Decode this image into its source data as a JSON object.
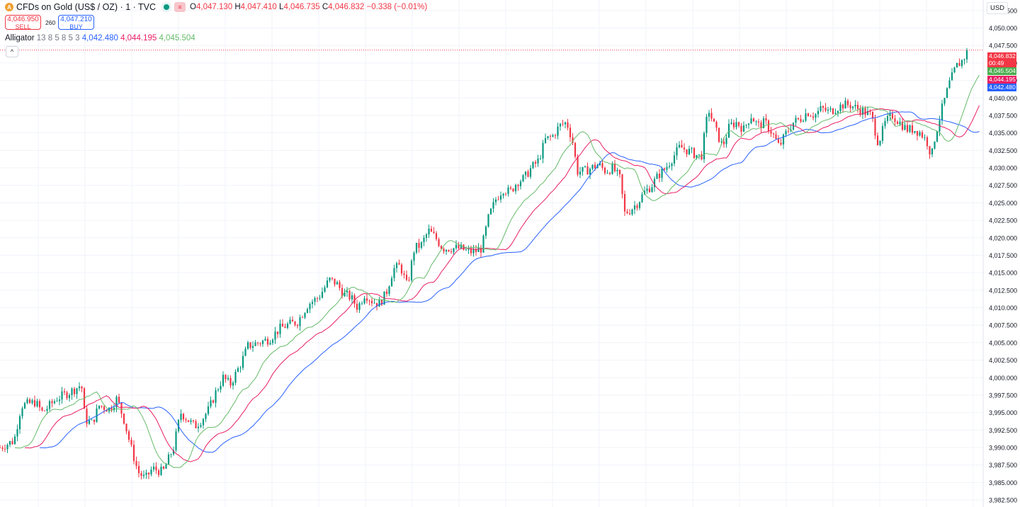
{
  "header": {
    "symbol_icon": "gold-coin-icon",
    "title": "CFDs on Gold (US$ / OZ) · 1 · TVC",
    "ohlc": {
      "o_label": "O",
      "o": "4,047.130",
      "h_label": "H",
      "h": "4,047.410",
      "l_label": "L",
      "l": "4,046.735",
      "c_label": "C",
      "c": "4,046.832",
      "change": "−0.338 (−0.01%)"
    }
  },
  "trade": {
    "sell_price": "4,046.950",
    "sell_label": "SELL",
    "spread": "260",
    "buy_price": "4,047.210",
    "buy_label": "BUY"
  },
  "indicator": {
    "name": "Alligator",
    "params": "13 8 5 8 5 3",
    "jaw": "4,042.480",
    "teeth": "4,044.195",
    "lips": "4,045.504"
  },
  "currency": "USD",
  "price_tags": [
    {
      "value": "4,046.832",
      "color": "#f23645"
    },
    {
      "value": "00:49",
      "color": "#f23645"
    },
    {
      "value": "4,045.504",
      "color": "#4caf50"
    },
    {
      "value": "4,044.195",
      "color": "#e91e63"
    },
    {
      "value": "4,042.480",
      "color": "#2962ff"
    }
  ],
  "colors": {
    "up": "#089981",
    "down": "#f23645",
    "jaw": "#2962ff",
    "teeth": "#e91e63",
    "lips": "#66bb6a",
    "grid": "#f0f3fa"
  },
  "chart_data": {
    "type": "line",
    "ylim": [
      3981.5,
      4054.0
    ],
    "yticks": [
      "4,052.500",
      "4,050.000",
      "4,047.500",
      "4,045.000",
      "4,042.500",
      "4,040.000",
      "4,037.500",
      "4,035.000",
      "4,032.500",
      "4,030.000",
      "4,027.500",
      "4,025.000",
      "4,022.500",
      "4,020.000",
      "4,017.500",
      "4,015.000",
      "4,012.500",
      "4,010.000",
      "4,007.500",
      "4,005.000",
      "4,002.500",
      "4,000.000",
      "3,997.500",
      "3,995.000",
      "3,992.500",
      "3,990.000",
      "3,987.500",
      "3,985.000",
      "3,982.500"
    ],
    "ytick_values": [
      4052.5,
      4050,
      4047.5,
      4045,
      4042.5,
      4040,
      4037.5,
      4035,
      4032.5,
      4030,
      4027.5,
      4025,
      4022.5,
      4020,
      4017.5,
      4015,
      4012.5,
      4010,
      4007.5,
      4005,
      4002.5,
      4000,
      3997.5,
      3995,
      3992.5,
      3990,
      3987.5,
      3985,
      3982.5
    ],
    "last_price": 4046.832,
    "price_path": [
      [
        0,
        3990.0
      ],
      [
        20,
        3991.0
      ],
      [
        30,
        3996.0
      ],
      [
        50,
        3996.5
      ],
      [
        60,
        3995.0
      ],
      [
        80,
        3997.0
      ],
      [
        100,
        3998.0
      ],
      [
        115,
        3999.0
      ],
      [
        120,
        3994.0
      ],
      [
        130,
        3993.5
      ],
      [
        140,
        3996.0
      ],
      [
        155,
        3995.5
      ],
      [
        165,
        3997.0
      ],
      [
        175,
        3994.0
      ],
      [
        185,
        3990.0
      ],
      [
        195,
        3986.5
      ],
      [
        205,
        3985.5
      ],
      [
        215,
        3987.0
      ],
      [
        230,
        3986.5
      ],
      [
        245,
        3990.0
      ],
      [
        255,
        3995.0
      ],
      [
        265,
        3994.0
      ],
      [
        275,
        3993.0
      ],
      [
        285,
        3994.0
      ],
      [
        295,
        3995.5
      ],
      [
        305,
        3998.0
      ],
      [
        315,
        4000.0
      ],
      [
        325,
        3999.0
      ],
      [
        340,
        4002.0
      ],
      [
        350,
        4004.5
      ],
      [
        365,
        4005.0
      ],
      [
        380,
        4005.5
      ],
      [
        395,
        4007.0
      ],
      [
        405,
        4007.5
      ],
      [
        420,
        4008.0
      ],
      [
        435,
        4010.5
      ],
      [
        450,
        4011.5
      ],
      [
        465,
        4014.0
      ],
      [
        475,
        4013.5
      ],
      [
        485,
        4012.0
      ],
      [
        495,
        4011.5
      ],
      [
        505,
        4010.0
      ],
      [
        515,
        4012.0
      ],
      [
        525,
        4011.0
      ],
      [
        535,
        4010.5
      ],
      [
        545,
        4012.0
      ],
      [
        555,
        4015.5
      ],
      [
        565,
        4016.0
      ],
      [
        575,
        4013.0
      ],
      [
        585,
        4018.5
      ],
      [
        595,
        4019.0
      ],
      [
        605,
        4021.0
      ],
      [
        615,
        4020.0
      ],
      [
        625,
        4018.5
      ],
      [
        635,
        4018.5
      ],
      [
        650,
        4018.5
      ],
      [
        660,
        4018.0
      ],
      [
        670,
        4018.0
      ],
      [
        680,
        4018.5
      ],
      [
        690,
        4023.0
      ],
      [
        700,
        4025.5
      ],
      [
        710,
        4027.0
      ],
      [
        720,
        4026.5
      ],
      [
        730,
        4028.0
      ],
      [
        740,
        4028.5
      ],
      [
        750,
        4030.0
      ],
      [
        760,
        4031.0
      ],
      [
        770,
        4034.0
      ],
      [
        780,
        4034.5
      ],
      [
        790,
        4036.0
      ],
      [
        800,
        4036.5
      ],
      [
        808,
        4034.0
      ],
      [
        815,
        4029.5
      ],
      [
        825,
        4029.5
      ],
      [
        835,
        4030.0
      ],
      [
        845,
        4030.5
      ],
      [
        855,
        4029.5
      ],
      [
        865,
        4030.0
      ],
      [
        875,
        4028.5
      ],
      [
        882,
        4023.5
      ],
      [
        890,
        4024.0
      ],
      [
        900,
        4025.0
      ],
      [
        910,
        4026.5
      ],
      [
        920,
        4027.5
      ],
      [
        930,
        4029.0
      ],
      [
        940,
        4030.0
      ],
      [
        950,
        4031.5
      ],
      [
        960,
        4033.0
      ],
      [
        970,
        4032.5
      ],
      [
        980,
        4032.0
      ],
      [
        990,
        4031.5
      ],
      [
        1000,
        4038.5
      ],
      [
        1010,
        4035.5
      ],
      [
        1020,
        4033.0
      ],
      [
        1030,
        4036.0
      ],
      [
        1040,
        4036.5
      ],
      [
        1050,
        4035.5
      ],
      [
        1060,
        4037.5
      ],
      [
        1070,
        4036.0
      ],
      [
        1080,
        4036.5
      ],
      [
        1090,
        4035.0
      ],
      [
        1100,
        4033.0
      ],
      [
        1110,
        4035.0
      ],
      [
        1120,
        4036.5
      ],
      [
        1130,
        4037.0
      ],
      [
        1140,
        4038.0
      ],
      [
        1150,
        4037.5
      ],
      [
        1160,
        4038.5
      ],
      [
        1170,
        4038.0
      ],
      [
        1180,
        4038.5
      ],
      [
        1190,
        4039.0
      ],
      [
        1200,
        4039.0
      ],
      [
        1210,
        4038.5
      ],
      [
        1220,
        4038.0
      ],
      [
        1230,
        4037.5
      ],
      [
        1240,
        4033.5
      ],
      [
        1250,
        4036.5
      ],
      [
        1260,
        4037.5
      ],
      [
        1270,
        4036.5
      ],
      [
        1280,
        4035.5
      ],
      [
        1290,
        4035.5
      ],
      [
        1300,
        4035.0
      ],
      [
        1310,
        4033.5
      ],
      [
        1315,
        4031.5
      ],
      [
        1320,
        4034.5
      ],
      [
        1330,
        4038.5
      ],
      [
        1340,
        4042.0
      ],
      [
        1350,
        4044.5
      ],
      [
        1360,
        4045.5
      ],
      [
        1366,
        4046.83
      ]
    ]
  }
}
